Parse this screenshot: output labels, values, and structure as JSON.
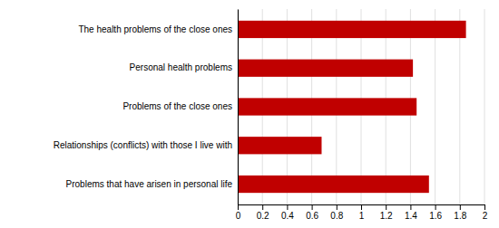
{
  "chart_data": {
    "type": "bar",
    "orientation": "horizontal",
    "categories": [
      "Problems that have arisen in personal life",
      "Relationships (conflicts) with those I live with",
      "Problems of the close ones",
      "Personal health problems",
      "The health problems of the close ones"
    ],
    "values": [
      1.55,
      0.68,
      1.45,
      1.42,
      1.85
    ],
    "color": "#c00000",
    "xlim": [
      0,
      2
    ],
    "xticks": [
      0,
      0.2,
      0.4,
      0.6,
      0.8,
      1,
      1.2,
      1.4,
      1.6,
      1.8,
      2
    ],
    "grid": true
  }
}
